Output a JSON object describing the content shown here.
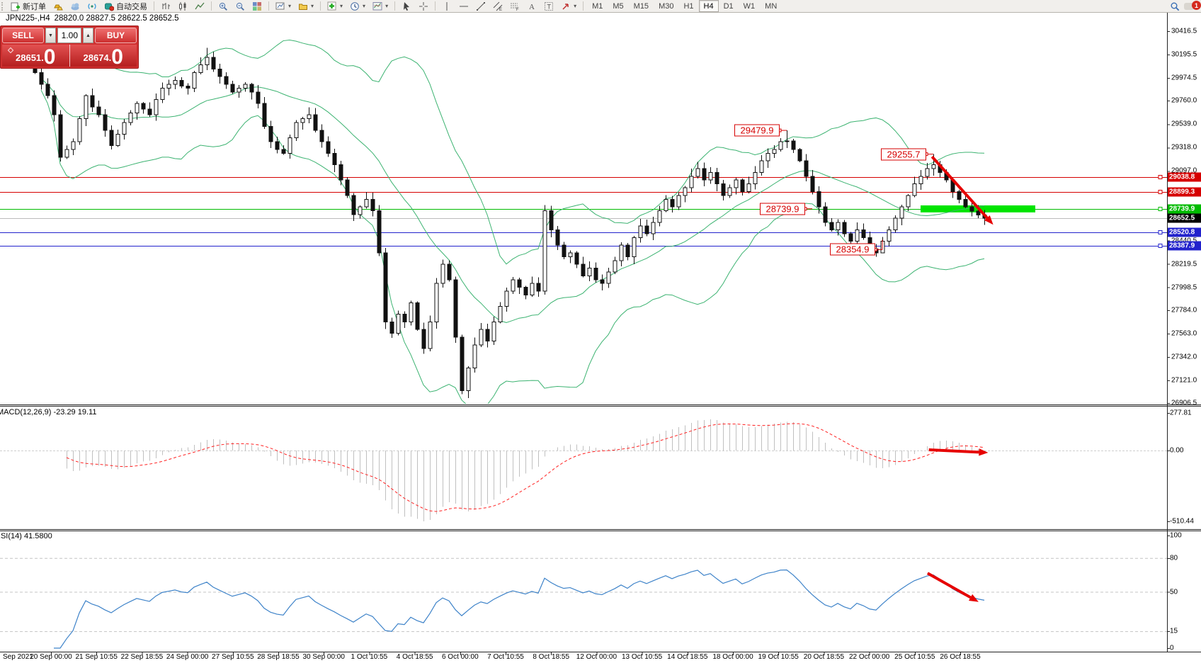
{
  "toolbar": {
    "new_order_label": "新订单",
    "autotrading_label": "自动交易",
    "timeframes": [
      "M1",
      "M5",
      "M15",
      "M30",
      "H1",
      "H4",
      "D1",
      "W1",
      "MN"
    ],
    "active_timeframe": "H4",
    "notification_count": "1"
  },
  "symbol_bar": {
    "symbol_period": "JPN225-,H4",
    "ohlc": "28820.0 28827.5 28622.5 28652.5"
  },
  "trade_panel": {
    "sell_label": "SELL",
    "buy_label": "BUY",
    "volume": "1.00",
    "sell_price": "28651",
    "sell_big": "0",
    "buy_price": "28674",
    "buy_big": "0"
  },
  "chart_data": {
    "type": "candlestick",
    "symbol": "JPN225-",
    "timeframe": "H4",
    "x_axis": {
      "labels": [
        "Sep 2021",
        "20 Sep 00:00",
        "21 Sep 10:55",
        "22 Sep 18:55",
        "24 Sep 00:00",
        "27 Sep 10:55",
        "28 Sep 18:55",
        "30 Sep 00:00",
        "1 Oct 10:55",
        "4 Oct 18:55",
        "6 Oct 00:00",
        "7 Oct 10:55",
        "8 Oct 18:55",
        "12 Oct 00:00",
        "13 Oct 10:55",
        "14 Oct 18:55",
        "18 Oct 00:00",
        "19 Oct 10:55",
        "20 Oct 18:55",
        "22 Oct 00:00",
        "25 Oct 10:55",
        "26 Oct 18:55"
      ]
    },
    "main": {
      "axis_ticks": [
        {
          "label": "30416.5",
          "value": 30416.5
        },
        {
          "label": "30195.5",
          "value": 30195.5
        },
        {
          "label": "29974.5",
          "value": 29974.5
        },
        {
          "label": "29760.0",
          "value": 29760.0
        },
        {
          "label": "29539.0",
          "value": 29539.0
        },
        {
          "label": "29318.0",
          "value": 29318.0
        },
        {
          "label": "29097.0",
          "value": 29097.0
        },
        {
          "label": "28440.5",
          "value": 28440.5
        },
        {
          "label": "28219.5",
          "value": 28219.5
        },
        {
          "label": "27998.5",
          "value": 27998.5
        },
        {
          "label": "27784.0",
          "value": 27784.0
        },
        {
          "label": "27563.0",
          "value": 27563.0
        },
        {
          "label": "27342.0",
          "value": 27342.0
        },
        {
          "label": "27121.0",
          "value": 27121.0
        },
        {
          "label": "26906.5",
          "value": 26906.5
        }
      ],
      "price_labels": [
        {
          "label": "29038.8",
          "value": 29038.8,
          "bg": "#d60000"
        },
        {
          "label": "28899.3",
          "value": 28899.3,
          "bg": "#d60000"
        },
        {
          "label": "28739.9",
          "value": 28739.9,
          "bg": "#00bb00"
        },
        {
          "label": "28652.5",
          "value": 28652.5,
          "bg": "#000000"
        },
        {
          "label": "28520.8",
          "value": 28520.8,
          "bg": "#2222cc"
        },
        {
          "label": "28387.9",
          "value": 28387.9,
          "bg": "#2222cc"
        }
      ],
      "hlines": [
        {
          "value": 29038.8,
          "color": "#d60000"
        },
        {
          "value": 28899.3,
          "color": "#d60000"
        },
        {
          "value": 28739.9,
          "color": "#00bb00"
        },
        {
          "value": 28520.8,
          "color": "#2222cc"
        },
        {
          "value": 28387.9,
          "color": "#2222cc"
        }
      ],
      "current_price": {
        "value": 28652.5,
        "color": "#bcbcbc"
      },
      "bollinger": {
        "period": 20,
        "deviation": 2,
        "color": "#3cb371"
      },
      "candles": {
        "first_open": 30150,
        "closes": [
          30024,
          29915,
          29807,
          29626,
          29228,
          29300,
          29373,
          29590,
          29807,
          29700,
          29626,
          29480,
          29337,
          29445,
          29554,
          29645,
          29734,
          29680,
          29626,
          29770,
          29879,
          29915,
          29951,
          29900,
          29879,
          30024,
          30100,
          30168,
          30060,
          29988,
          29915,
          29843,
          29879,
          29915,
          29843,
          29734,
          29517,
          29373,
          29300,
          29264,
          29409,
          29554,
          29590,
          29626,
          29480,
          29373,
          29264,
          29156,
          29011,
          28867,
          28686,
          28758,
          28830,
          28722,
          28324,
          27673,
          27565,
          27745,
          27673,
          27854,
          27601,
          27420,
          27673,
          28035,
          28216,
          28071,
          27528,
          27022,
          27239,
          27456,
          27601,
          27492,
          27673,
          27818,
          27963,
          28071,
          27999,
          27926,
          28035,
          27963,
          28722,
          28541,
          28396,
          28288,
          28324,
          28216,
          28107,
          28179,
          28071,
          28035,
          28143,
          28252,
          28396,
          28288,
          28469,
          28577,
          28505,
          28613,
          28722,
          28830,
          28758,
          28867,
          28939,
          29047,
          29120,
          29011,
          29083,
          28975,
          28867,
          28939,
          29011,
          28903,
          28975,
          29083,
          29192,
          29264,
          29300,
          29373,
          29380,
          29300,
          29192,
          29047,
          28903,
          28758,
          28613,
          28541,
          28613,
          28505,
          28433,
          28541,
          28469,
          28360,
          28324,
          28433,
          28541,
          28650,
          28758,
          28867,
          28975,
          29047,
          29120,
          29156,
          29083,
          29011,
          28903,
          28830,
          28758,
          28720,
          28680,
          28652.5
        ],
        "wick_overrides": {
          "27": {
            "high": 30260
          },
          "67": {
            "low": 26990
          },
          "118": {
            "high": 29479.9
          },
          "133": {
            "low": 28354.9
          },
          "141": {
            "high": 29255.7
          }
        }
      },
      "callouts": [
        {
          "text": "29479.9",
          "value": 29479.9,
          "bar": 118,
          "connector": "H"
        },
        {
          "text": "29255.7",
          "value": 29255.7,
          "bar": 141,
          "connector": "H"
        },
        {
          "text": "28739.9",
          "value": 28739.9,
          "bar": 122,
          "connector": "H"
        },
        {
          "text": "28354.9",
          "value": 28354.9,
          "bar": 133,
          "connector": "L"
        }
      ],
      "green_zone": {
        "price_top": 28772,
        "price_bottom": 28706,
        "bar_start": 139,
        "bar_end": 157,
        "color": "#00e400"
      },
      "arrow": {
        "from_bar": 140.8,
        "from_value": 29232,
        "to_bar": 150.4,
        "to_value": 28590,
        "color": "#e60000"
      }
    },
    "macd": {
      "name": "MACD",
      "params": "(12,26,9)",
      "values_text": "-23.29 19.11",
      "fast": 12,
      "slow": 26,
      "signal_period": 9,
      "axis_ticks": [
        {
          "label": "277.81",
          "value": 277.81
        },
        {
          "label": "0.00",
          "value": 0
        },
        {
          "label": "-510.44",
          "value": -510.44
        }
      ],
      "histogram_color": "#c0c0c0",
      "signal_color": "#ff2020",
      "arrow": {
        "from_bar": 140.3,
        "from_value": 5,
        "to_bar": 149.6,
        "to_value": -15,
        "color": "#e60000"
      }
    },
    "rsi": {
      "name": "RSI",
      "params": "(14)",
      "value_text": "41.5800",
      "period": 14,
      "axis_ticks": [
        {
          "label": "100",
          "value": 100
        },
        {
          "label": "80",
          "value": 80
        },
        {
          "label": "50",
          "value": 50
        },
        {
          "label": "15",
          "value": 15
        },
        {
          "label": "0",
          "value": 0
        }
      ],
      "levels": [
        80,
        50,
        15
      ],
      "line_color": "#3e83c9",
      "arrow": {
        "from_bar": 140.1,
        "from_value": 66.5,
        "to_bar": 148.1,
        "to_value": 41,
        "color": "#e60000"
      }
    }
  }
}
